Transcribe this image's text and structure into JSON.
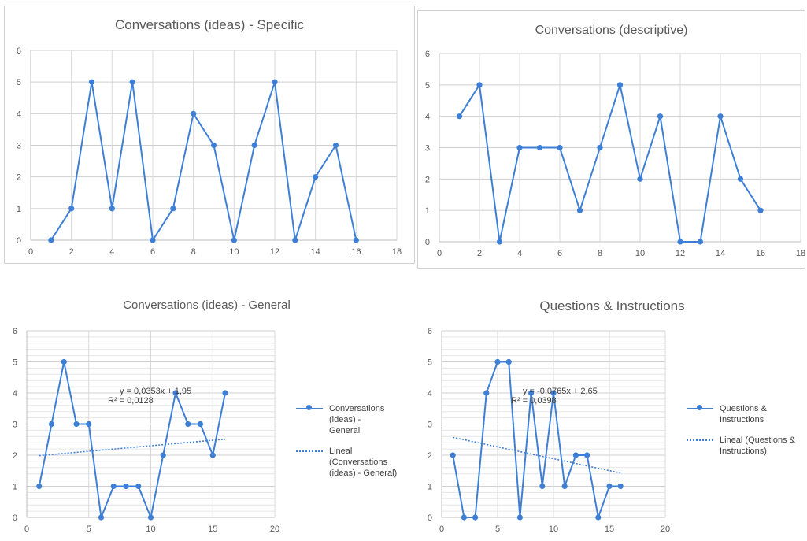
{
  "colors": {
    "series": "#3d7fd6",
    "grid": "#d9d9d9",
    "axis": "#bfbfbf",
    "text": "#595959"
  },
  "chart_data": [
    {
      "type": "line",
      "title": "Conversations (ideas) - Specific",
      "x": [
        1,
        2,
        3,
        4,
        5,
        6,
        7,
        8,
        9,
        10,
        11,
        12,
        13,
        14,
        15,
        16
      ],
      "values": [
        0,
        1,
        5,
        1,
        5,
        0,
        1,
        4,
        3,
        0,
        3,
        5,
        0,
        2,
        3,
        0
      ],
      "xlim": [
        0,
        18
      ],
      "ylim": [
        0,
        6
      ],
      "xticks": [
        "0",
        "2",
        "4",
        "6",
        "8",
        "10",
        "12",
        "14",
        "16",
        "18"
      ],
      "yticks": [
        "0",
        "1",
        "2",
        "3",
        "4",
        "5",
        "6"
      ],
      "grid": true
    },
    {
      "type": "line",
      "title": "Conversations (descriptive)",
      "x": [
        1,
        2,
        3,
        4,
        5,
        6,
        7,
        8,
        9,
        10,
        11,
        12,
        13,
        14,
        15,
        16
      ],
      "values": [
        4,
        5,
        0,
        3,
        3,
        3,
        1,
        3,
        5,
        2,
        4,
        0,
        0,
        4,
        2,
        1
      ],
      "xlim": [
        0,
        18
      ],
      "ylim": [
        0,
        6
      ],
      "xticks": [
        "0",
        "2",
        "4",
        "6",
        "8",
        "10",
        "12",
        "14",
        "16",
        "18"
      ],
      "yticks": [
        "0",
        "1",
        "2",
        "3",
        "4",
        "5",
        "6"
      ],
      "grid": true
    },
    {
      "type": "line",
      "title": "Conversations (ideas) - General",
      "x": [
        1,
        2,
        3,
        4,
        5,
        6,
        7,
        8,
        9,
        10,
        11,
        12,
        13,
        14,
        15,
        16
      ],
      "series": [
        {
          "name": "Conversations (ideas) - General",
          "values": [
            1,
            3,
            5,
            3,
            3,
            0,
            1,
            1,
            1,
            0,
            2,
            4,
            3,
            3,
            2,
            4
          ]
        }
      ],
      "trendline": {
        "name": "Lineal (Conversations (ideas) - General)",
        "slope": 0.0353,
        "intercept": 1.95,
        "x_range": [
          1,
          16
        ]
      },
      "annotation": [
        "y = 0,0353x + 1,95",
        "R² = 0,0128"
      ],
      "xlim": [
        0,
        20
      ],
      "ylim": [
        0,
        6
      ],
      "xticks": [
        "0",
        "5",
        "10",
        "15",
        "20"
      ],
      "yticks": [
        "0",
        "1",
        "2",
        "3",
        "4",
        "5",
        "6"
      ],
      "grid": true,
      "legend_position": "right"
    },
    {
      "type": "line",
      "title": "Questions & Instructions",
      "x": [
        1,
        2,
        3,
        4,
        5,
        6,
        7,
        8,
        9,
        10,
        11,
        12,
        13,
        14,
        15,
        16
      ],
      "series": [
        {
          "name": "Questions & Instructions",
          "values": [
            2,
            0,
            0,
            4,
            5,
            5,
            0,
            4,
            1,
            4,
            1,
            2,
            2,
            0,
            1,
            1
          ]
        }
      ],
      "trendline": {
        "name": "Lineal (Questions & Instructions)",
        "slope": -0.0765,
        "intercept": 2.65,
        "x_range": [
          1,
          16
        ]
      },
      "annotation": [
        "y = -0,0765x + 2,65",
        "R² = 0,0398"
      ],
      "xlim": [
        0,
        20
      ],
      "ylim": [
        0,
        6
      ],
      "xticks": [
        "0",
        "5",
        "10",
        "15",
        "20"
      ],
      "yticks": [
        "0",
        "1",
        "2",
        "3",
        "4",
        "5",
        "6"
      ],
      "grid": true,
      "legend_position": "right"
    }
  ],
  "legends": [
    {
      "series_label": [
        "Conversations (ideas) -",
        "General"
      ],
      "trend_label": [
        "Lineal (Conversations",
        "(ideas) - General)"
      ]
    },
    {
      "series_label": [
        "Questions &",
        "Instructions"
      ],
      "trend_label": [
        "Lineal (Questions &",
        "Instructions)"
      ]
    }
  ]
}
